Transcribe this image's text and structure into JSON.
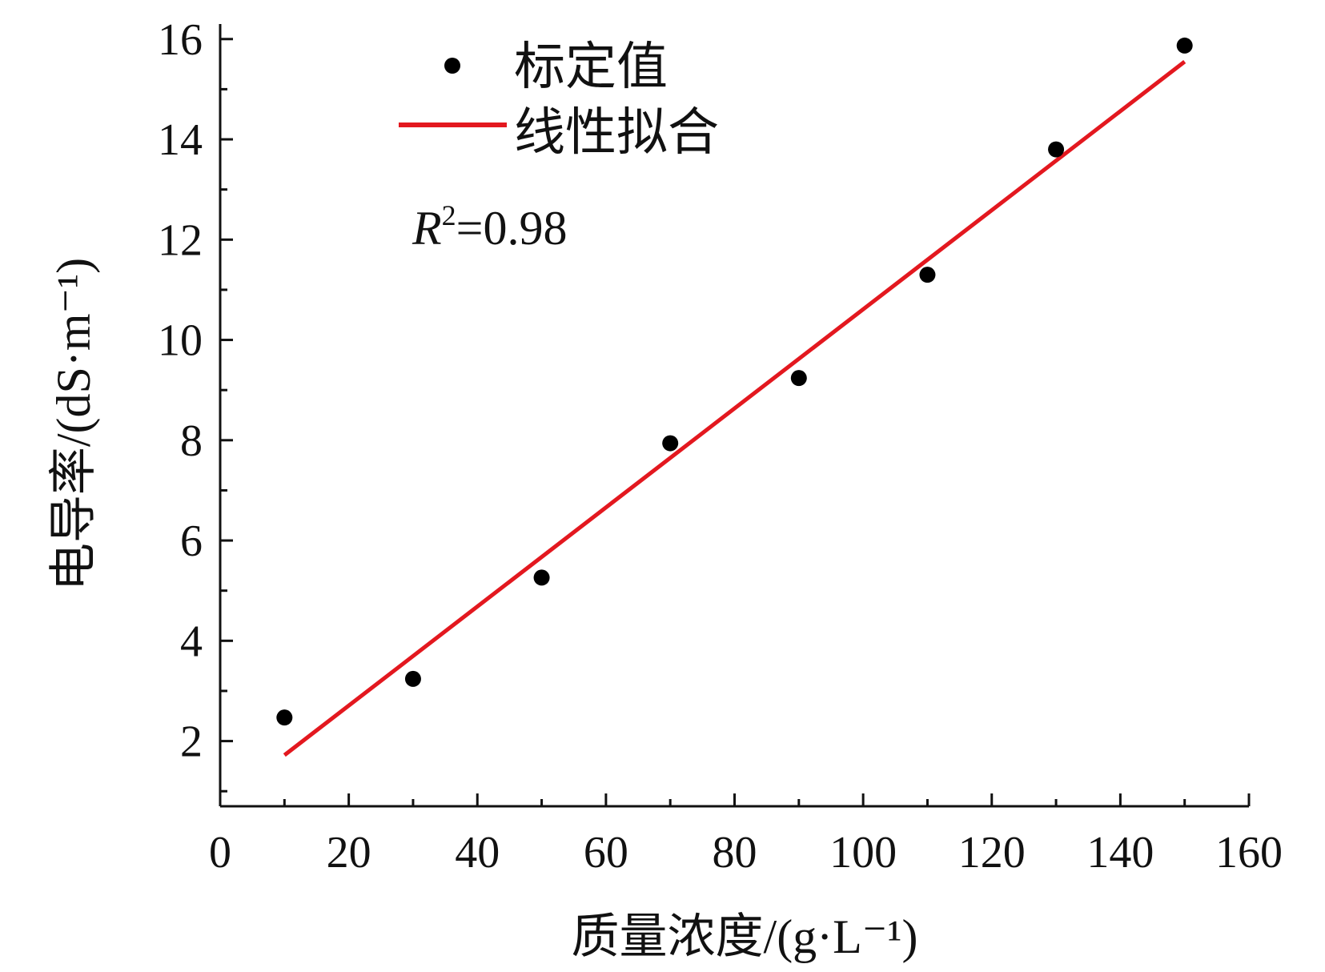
{
  "chart_data": {
    "type": "scatter",
    "xlabel": "质量浓度/(g·L⁻¹)",
    "ylabel": "电导率/(dS·m⁻¹)",
    "xlim": [
      0,
      160
    ],
    "ylim": [
      0.7,
      16.3
    ],
    "xticks": [
      0,
      20,
      40,
      60,
      80,
      100,
      120,
      140,
      160
    ],
    "yticks": [
      2,
      4,
      6,
      8,
      10,
      12,
      14,
      16
    ],
    "grid": false,
    "legend_position": "top-left",
    "series": [
      {
        "name": "标定值",
        "kind": "scatter",
        "color": "#000000",
        "x": [
          10,
          30,
          50,
          70,
          90,
          110,
          130,
          150
        ],
        "y": [
          2.47,
          3.24,
          5.26,
          7.94,
          9.24,
          11.3,
          13.8,
          15.87
        ]
      },
      {
        "name": "线性拟合",
        "kind": "line",
        "color": "#e3181f",
        "x": [
          10,
          150
        ],
        "y": [
          1.72,
          15.55
        ]
      }
    ],
    "annotation": {
      "variable": "R",
      "superscript": "2",
      "value": "=0.98"
    }
  }
}
